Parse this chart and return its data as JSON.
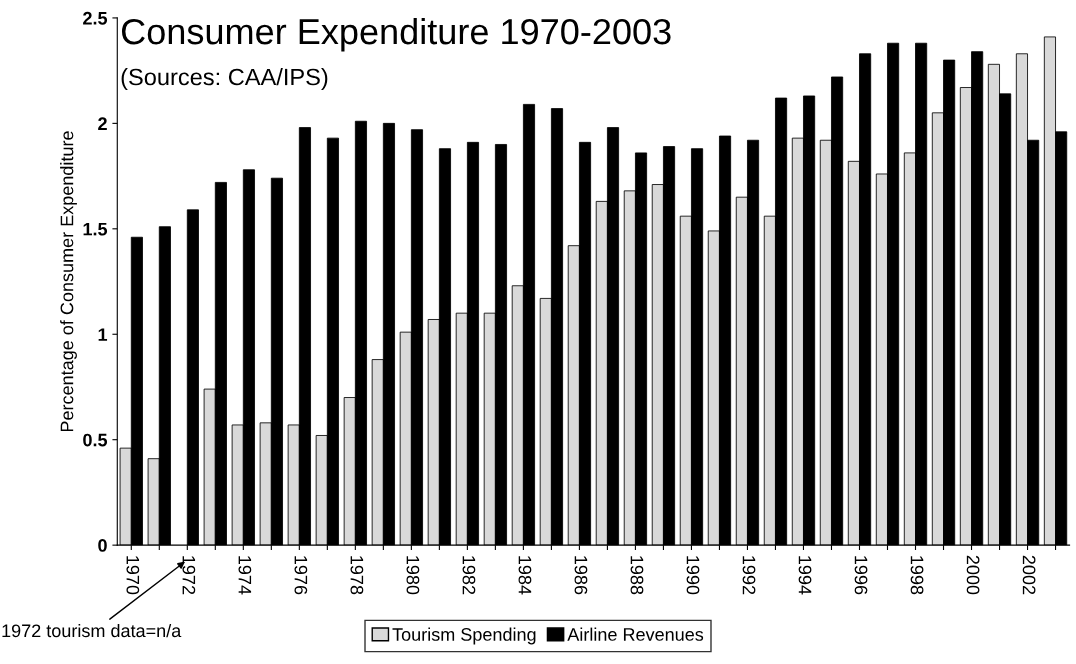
{
  "chart_data": {
    "type": "bar",
    "title": "Consumer Expenditure 1970-2003",
    "subtitle": "(Sources: CAA/IPS)",
    "ylabel": "Percentage of Consumer Expenditure",
    "categories": [
      "1970",
      null,
      "1972",
      null,
      "1974",
      null,
      "1976",
      null,
      "1978",
      null,
      "1980",
      null,
      "1982",
      null,
      "1984",
      null,
      "1986",
      null,
      "1988",
      null,
      "1990",
      null,
      "1992",
      null,
      "1994",
      null,
      "1996",
      null,
      "1998",
      null,
      "2000",
      null,
      "2002",
      null
    ],
    "series": [
      {
        "name": "Tourism Spending",
        "color": "#d9d9d9",
        "values": [
          0.46,
          0.41,
          null,
          0.74,
          0.57,
          0.58,
          0.57,
          0.52,
          0.7,
          0.88,
          1.01,
          1.07,
          1.1,
          1.1,
          1.23,
          1.17,
          1.42,
          1.63,
          1.68,
          1.71,
          1.56,
          1.49,
          1.65,
          1.56,
          1.93,
          1.92,
          1.82,
          1.76,
          1.86,
          2.05,
          2.17,
          2.28,
          2.33,
          2.41
        ]
      },
      {
        "name": "Airline Revenues",
        "color": "#000000",
        "values": [
          1.46,
          1.51,
          1.59,
          1.72,
          1.78,
          1.74,
          1.98,
          1.93,
          2.01,
          2.0,
          1.97,
          1.88,
          1.91,
          1.9,
          2.09,
          2.07,
          1.91,
          1.98,
          1.86,
          1.89,
          1.88,
          1.94,
          1.92,
          2.12,
          2.13,
          2.22,
          2.33,
          2.38,
          2.38,
          2.3,
          2.34,
          2.14,
          1.92,
          1.96
        ]
      }
    ],
    "ylim": [
      0,
      2.5
    ],
    "yticks": [
      0,
      0.5,
      1,
      1.5,
      2,
      2.5
    ],
    "grid": false,
    "legend": "bottom",
    "annotations": [
      "1972 tourism data=n/a"
    ]
  }
}
